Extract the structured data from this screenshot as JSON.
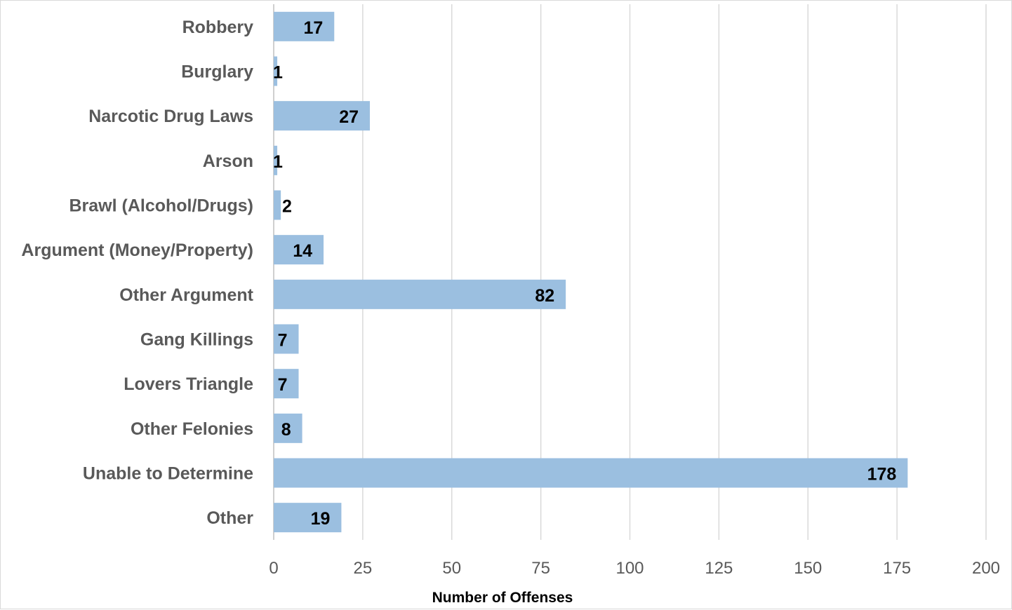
{
  "chart_data": {
    "type": "bar",
    "orientation": "horizontal",
    "categories": [
      "Robbery",
      "Burglary",
      "Narcotic Drug Laws",
      "Arson",
      "Brawl (Alcohol/Drugs)",
      "Argument (Money/Property)",
      "Other Argument",
      "Gang Killings",
      "Lovers Triangle",
      "Other Felonies",
      "Unable to Determine",
      "Other"
    ],
    "values": [
      17,
      1,
      27,
      1,
      2,
      14,
      82,
      7,
      7,
      8,
      178,
      19
    ],
    "xlabel": "Number of Offenses",
    "ylabel": "",
    "xlim": [
      0,
      200
    ],
    "xticks": [
      0,
      25,
      50,
      75,
      100,
      125,
      150,
      175,
      200
    ],
    "grid": true,
    "data_labels": true,
    "bar_color": "#9bbfe0",
    "gridline_color": "#d9d9d9",
    "label_color": "#595959"
  }
}
